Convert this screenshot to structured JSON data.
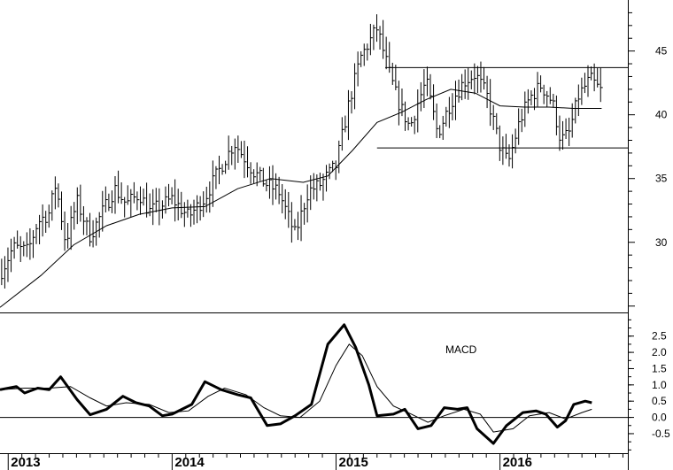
{
  "chart_data": [
    {
      "type": "ohlc",
      "panel": "price",
      "y_ticks": [
        30,
        35,
        40,
        45
      ],
      "ylim": [
        24.5,
        49
      ],
      "x_range": [
        2012.95,
        2016.78
      ],
      "x_ticks": [
        {
          "x": 2013,
          "label": "2013"
        },
        {
          "x": 2014,
          "label": "2014"
        },
        {
          "x": 2015,
          "label": "2015"
        },
        {
          "x": 2016,
          "label": "2016"
        }
      ],
      "price_path": [
        [
          2012.95,
          27.5
        ],
        [
          2013.03,
          29.6
        ],
        [
          2013.12,
          29.3
        ],
        [
          2013.18,
          31.6
        ],
        [
          2013.25,
          32.3
        ],
        [
          2013.29,
          34.6
        ],
        [
          2013.35,
          30.0
        ],
        [
          2013.42,
          33.2
        ],
        [
          2013.5,
          30.5
        ],
        [
          2013.58,
          32.5
        ],
        [
          2013.65,
          34.2
        ],
        [
          2013.72,
          33.0
        ],
        [
          2013.8,
          33.8
        ],
        [
          2013.86,
          32.4
        ],
        [
          2013.92,
          32.8
        ],
        [
          2014.0,
          33.4
        ],
        [
          2014.1,
          32.0
        ],
        [
          2014.2,
          33.5
        ],
        [
          2014.3,
          36.0
        ],
        [
          2014.38,
          37.8
        ],
        [
          2014.5,
          35.5
        ],
        [
          2014.58,
          34.5
        ],
        [
          2014.65,
          34.0
        ],
        [
          2014.75,
          30.6
        ],
        [
          2014.83,
          34.0
        ],
        [
          2014.9,
          34.5
        ],
        [
          2015.0,
          36.0
        ],
        [
          2015.08,
          41.0
        ],
        [
          2015.15,
          44.5
        ],
        [
          2015.25,
          46.8
        ],
        [
          2015.33,
          43.0
        ],
        [
          2015.38,
          41.0
        ],
        [
          2015.45,
          39.0
        ],
        [
          2015.5,
          41.0
        ],
        [
          2015.55,
          42.6
        ],
        [
          2015.62,
          38.5
        ],
        [
          2015.7,
          41.0
        ],
        [
          2015.78,
          42.6
        ],
        [
          2015.85,
          43.2
        ],
        [
          2015.92,
          41.5
        ],
        [
          2016.0,
          37.5
        ],
        [
          2016.05,
          36.2
        ],
        [
          2016.12,
          39.5
        ],
        [
          2016.18,
          41.3
        ],
        [
          2016.25,
          42.3
        ],
        [
          2016.32,
          41.0
        ],
        [
          2016.37,
          38.0
        ],
        [
          2016.42,
          38.5
        ],
        [
          2016.48,
          41.5
        ],
        [
          2016.55,
          42.8
        ],
        [
          2016.62,
          41.8
        ]
      ],
      "moving_average": [
        [
          2012.95,
          24.9
        ],
        [
          2013.2,
          27.4
        ],
        [
          2013.4,
          29.8
        ],
        [
          2013.6,
          31.3
        ],
        [
          2013.8,
          32.2
        ],
        [
          2014.0,
          32.7
        ],
        [
          2014.2,
          32.8
        ],
        [
          2014.4,
          34.2
        ],
        [
          2014.6,
          35.0
        ],
        [
          2014.8,
          34.7
        ],
        [
          2014.95,
          35.2
        ],
        [
          2015.1,
          37.2
        ],
        [
          2015.25,
          39.4
        ],
        [
          2015.4,
          40.2
        ],
        [
          2015.55,
          41.2
        ],
        [
          2015.7,
          42.0
        ],
        [
          2015.85,
          41.7
        ],
        [
          2016.0,
          40.7
        ],
        [
          2016.15,
          40.6
        ],
        [
          2016.3,
          40.6
        ],
        [
          2016.45,
          40.5
        ],
        [
          2016.62,
          40.5
        ]
      ],
      "resistance_line": {
        "x": [
          2015.3,
          2016.78
        ],
        "y": 43.7
      },
      "support_line": {
        "x": [
          2015.25,
          2016.78
        ],
        "y": 37.4
      }
    },
    {
      "type": "line",
      "panel": "indicator",
      "annotation": "MACD",
      "y_ticks": [
        {
          "value": 2.5,
          "label": "2.5"
        },
        {
          "value": 2.0,
          "label": "2.0"
        },
        {
          "value": 1.5,
          "label": "1.5"
        },
        {
          "value": 1.0,
          "label": "1.0"
        },
        {
          "value": 0.5,
          "label": "0.5"
        },
        {
          "value": 0.0,
          "label": "0.0"
        },
        {
          "value": -0.5,
          "label": "-0.5"
        }
      ],
      "ylim": [
        -1.1,
        3.2
      ],
      "zero_line": 0,
      "series": [
        {
          "values": [
            [
              2012.95,
              0.85
            ],
            [
              2013.05,
              0.95
            ],
            [
              2013.1,
              0.75
            ],
            [
              2013.18,
              0.9
            ],
            [
              2013.25,
              0.85
            ],
            [
              2013.32,
              1.25
            ],
            [
              2013.42,
              0.55
            ],
            [
              2013.5,
              0.08
            ],
            [
              2013.6,
              0.25
            ],
            [
              2013.7,
              0.65
            ],
            [
              2013.78,
              0.45
            ],
            [
              2013.86,
              0.35
            ],
            [
              2013.94,
              0.05
            ],
            [
              2014.0,
              0.1
            ],
            [
              2014.12,
              0.4
            ],
            [
              2014.2,
              1.1
            ],
            [
              2014.3,
              0.85
            ],
            [
              2014.4,
              0.7
            ],
            [
              2014.48,
              0.6
            ],
            [
              2014.58,
              -0.25
            ],
            [
              2014.66,
              -0.2
            ],
            [
              2014.75,
              0.05
            ],
            [
              2014.85,
              0.4
            ],
            [
              2014.95,
              2.25
            ],
            [
              2015.05,
              2.85
            ],
            [
              2015.12,
              2.15
            ],
            [
              2015.2,
              1.0
            ],
            [
              2015.25,
              0.05
            ],
            [
              2015.35,
              0.1
            ],
            [
              2015.42,
              0.25
            ],
            [
              2015.5,
              -0.35
            ],
            [
              2015.58,
              -0.25
            ],
            [
              2015.66,
              0.3
            ],
            [
              2015.74,
              0.25
            ],
            [
              2015.8,
              0.3
            ],
            [
              2015.86,
              -0.35
            ],
            [
              2015.96,
              -0.8
            ],
            [
              2016.04,
              -0.25
            ],
            [
              2016.14,
              0.15
            ],
            [
              2016.22,
              0.2
            ],
            [
              2016.28,
              0.1
            ],
            [
              2016.35,
              -0.3
            ],
            [
              2016.4,
              -0.1
            ],
            [
              2016.45,
              0.4
            ],
            [
              2016.52,
              0.5
            ],
            [
              2016.56,
              0.45
            ]
          ]
        },
        {
          "values": [
            [
              2012.95,
              0.85
            ],
            [
              2013.1,
              0.9
            ],
            [
              2013.25,
              0.9
            ],
            [
              2013.38,
              0.95
            ],
            [
              2013.5,
              0.6
            ],
            [
              2013.6,
              0.35
            ],
            [
              2013.72,
              0.45
            ],
            [
              2013.86,
              0.4
            ],
            [
              2013.98,
              0.15
            ],
            [
              2014.1,
              0.2
            ],
            [
              2014.22,
              0.65
            ],
            [
              2014.32,
              0.9
            ],
            [
              2014.45,
              0.7
            ],
            [
              2014.56,
              0.3
            ],
            [
              2014.66,
              0.05
            ],
            [
              2014.78,
              0.0
            ],
            [
              2014.9,
              0.5
            ],
            [
              2015.0,
              1.6
            ],
            [
              2015.08,
              2.25
            ],
            [
              2015.16,
              1.9
            ],
            [
              2015.25,
              0.95
            ],
            [
              2015.35,
              0.35
            ],
            [
              2015.46,
              0.1
            ],
            [
              2015.56,
              -0.15
            ],
            [
              2015.66,
              0.05
            ],
            [
              2015.78,
              0.25
            ],
            [
              2015.88,
              0.1
            ],
            [
              2015.96,
              -0.45
            ],
            [
              2016.08,
              -0.35
            ],
            [
              2016.18,
              0.05
            ],
            [
              2016.3,
              0.15
            ],
            [
              2016.4,
              -0.05
            ],
            [
              2016.5,
              0.15
            ],
            [
              2016.56,
              0.25
            ]
          ]
        }
      ]
    }
  ]
}
